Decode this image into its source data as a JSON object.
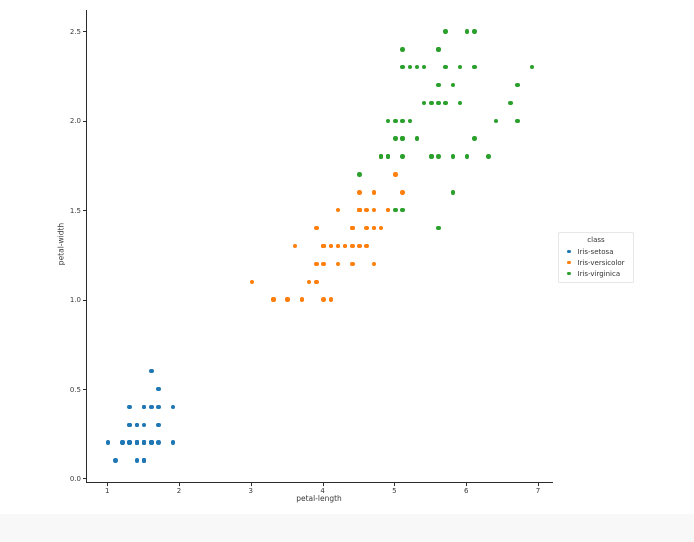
{
  "chart_data": {
    "type": "scatter",
    "title": "",
    "xlabel": "petal-length",
    "ylabel": "petal-width",
    "xlim": [
      0.705,
      7.195
    ],
    "ylim": [
      -0.02,
      2.62
    ],
    "x_tick_values": [
      1,
      2,
      3,
      4,
      5,
      6,
      7
    ],
    "x_tick_labels": [
      "1",
      "2",
      "3",
      "4",
      "5",
      "6",
      "7"
    ],
    "y_tick_values": [
      0.0,
      0.5,
      1.0,
      1.5,
      2.0,
      2.5
    ],
    "y_tick_labels": [
      "0.0",
      "0.5",
      "1.0",
      "1.5",
      "2.0",
      "2.5"
    ],
    "grid": false,
    "legend": {
      "title": "class",
      "position": "right",
      "entries": [
        {
          "label": "Iris-setosa",
          "color": "#1f77b4"
        },
        {
          "label": "Iris-versicolor",
          "color": "#ff7f0e"
        },
        {
          "label": "Iris-virginica",
          "color": "#2ca02c"
        }
      ]
    },
    "series": [
      {
        "name": "Iris-setosa",
        "color": "#1f77b4",
        "points": [
          [
            1.4,
            0.2
          ],
          [
            1.4,
            0.2
          ],
          [
            1.3,
            0.2
          ],
          [
            1.5,
            0.2
          ],
          [
            1.4,
            0.2
          ],
          [
            1.7,
            0.4
          ],
          [
            1.4,
            0.3
          ],
          [
            1.5,
            0.2
          ],
          [
            1.4,
            0.2
          ],
          [
            1.5,
            0.1
          ],
          [
            1.5,
            0.2
          ],
          [
            1.6,
            0.2
          ],
          [
            1.4,
            0.1
          ],
          [
            1.1,
            0.1
          ],
          [
            1.2,
            0.2
          ],
          [
            1.5,
            0.4
          ],
          [
            1.3,
            0.4
          ],
          [
            1.4,
            0.3
          ],
          [
            1.7,
            0.3
          ],
          [
            1.5,
            0.3
          ],
          [
            1.7,
            0.2
          ],
          [
            1.5,
            0.4
          ],
          [
            1.0,
            0.2
          ],
          [
            1.7,
            0.5
          ],
          [
            1.9,
            0.2
          ],
          [
            1.6,
            0.2
          ],
          [
            1.6,
            0.4
          ],
          [
            1.5,
            0.2
          ],
          [
            1.4,
            0.2
          ],
          [
            1.6,
            0.2
          ],
          [
            1.6,
            0.2
          ],
          [
            1.5,
            0.4
          ],
          [
            1.5,
            0.1
          ],
          [
            1.4,
            0.2
          ],
          [
            1.5,
            0.1
          ],
          [
            1.2,
            0.2
          ],
          [
            1.3,
            0.2
          ],
          [
            1.5,
            0.1
          ],
          [
            1.3,
            0.2
          ],
          [
            1.5,
            0.2
          ],
          [
            1.3,
            0.3
          ],
          [
            1.3,
            0.3
          ],
          [
            1.3,
            0.2
          ],
          [
            1.6,
            0.6
          ],
          [
            1.9,
            0.4
          ],
          [
            1.4,
            0.3
          ],
          [
            1.6,
            0.2
          ],
          [
            1.4,
            0.2
          ],
          [
            1.5,
            0.2
          ],
          [
            1.4,
            0.2
          ]
        ]
      },
      {
        "name": "Iris-versicolor",
        "color": "#ff7f0e",
        "points": [
          [
            4.7,
            1.4
          ],
          [
            4.5,
            1.5
          ],
          [
            4.9,
            1.5
          ],
          [
            4.0,
            1.3
          ],
          [
            4.6,
            1.5
          ],
          [
            4.5,
            1.3
          ],
          [
            4.7,
            1.6
          ],
          [
            3.3,
            1.0
          ],
          [
            4.6,
            1.3
          ],
          [
            3.9,
            1.4
          ],
          [
            3.5,
            1.0
          ],
          [
            4.2,
            1.5
          ],
          [
            4.0,
            1.0
          ],
          [
            4.7,
            1.4
          ],
          [
            3.6,
            1.3
          ],
          [
            4.4,
            1.4
          ],
          [
            4.5,
            1.5
          ],
          [
            4.1,
            1.0
          ],
          [
            4.5,
            1.5
          ],
          [
            3.9,
            1.1
          ],
          [
            4.8,
            1.8
          ],
          [
            4.0,
            1.3
          ],
          [
            4.9,
            1.5
          ],
          [
            4.7,
            1.2
          ],
          [
            4.3,
            1.3
          ],
          [
            4.4,
            1.4
          ],
          [
            4.8,
            1.4
          ],
          [
            5.0,
            1.7
          ],
          [
            4.5,
            1.5
          ],
          [
            3.5,
            1.0
          ],
          [
            3.8,
            1.1
          ],
          [
            3.7,
            1.0
          ],
          [
            3.9,
            1.2
          ],
          [
            5.1,
            1.6
          ],
          [
            4.5,
            1.5
          ],
          [
            4.5,
            1.6
          ],
          [
            4.7,
            1.5
          ],
          [
            4.4,
            1.3
          ],
          [
            4.1,
            1.3
          ],
          [
            4.0,
            1.3
          ],
          [
            4.4,
            1.2
          ],
          [
            4.6,
            1.4
          ],
          [
            4.0,
            1.2
          ],
          [
            3.3,
            1.0
          ],
          [
            4.2,
            1.3
          ],
          [
            4.2,
            1.2
          ],
          [
            4.2,
            1.3
          ],
          [
            4.3,
            1.3
          ],
          [
            3.0,
            1.1
          ],
          [
            4.1,
            1.3
          ]
        ]
      },
      {
        "name": "Iris-virginica",
        "color": "#2ca02c",
        "points": [
          [
            6.0,
            2.5
          ],
          [
            5.1,
            1.9
          ],
          [
            5.9,
            2.1
          ],
          [
            5.6,
            1.8
          ],
          [
            5.8,
            2.2
          ],
          [
            6.6,
            2.1
          ],
          [
            4.5,
            1.7
          ],
          [
            6.3,
            1.8
          ],
          [
            5.8,
            1.8
          ],
          [
            6.1,
            2.5
          ],
          [
            5.1,
            2.0
          ],
          [
            5.3,
            1.9
          ],
          [
            5.5,
            2.1
          ],
          [
            5.0,
            2.0
          ],
          [
            5.1,
            2.4
          ],
          [
            5.3,
            2.3
          ],
          [
            5.5,
            1.8
          ],
          [
            6.7,
            2.2
          ],
          [
            6.9,
            2.3
          ],
          [
            5.0,
            1.5
          ],
          [
            5.7,
            2.3
          ],
          [
            4.9,
            2.0
          ],
          [
            6.7,
            2.0
          ],
          [
            4.9,
            1.8
          ],
          [
            5.7,
            2.1
          ],
          [
            6.0,
            1.8
          ],
          [
            4.8,
            1.8
          ],
          [
            4.9,
            1.8
          ],
          [
            5.6,
            2.1
          ],
          [
            5.8,
            1.6
          ],
          [
            6.1,
            1.9
          ],
          [
            6.4,
            2.0
          ],
          [
            5.6,
            2.2
          ],
          [
            5.1,
            1.5
          ],
          [
            5.6,
            1.4
          ],
          [
            6.1,
            2.3
          ],
          [
            5.6,
            2.4
          ],
          [
            5.5,
            1.8
          ],
          [
            4.8,
            1.8
          ],
          [
            5.4,
            2.1
          ],
          [
            5.6,
            2.4
          ],
          [
            5.1,
            2.3
          ],
          [
            5.1,
            1.9
          ],
          [
            5.9,
            2.3
          ],
          [
            5.7,
            2.5
          ],
          [
            5.2,
            2.3
          ],
          [
            5.0,
            1.9
          ],
          [
            5.2,
            2.0
          ],
          [
            5.4,
            2.3
          ],
          [
            5.1,
            1.8
          ]
        ]
      }
    ]
  }
}
